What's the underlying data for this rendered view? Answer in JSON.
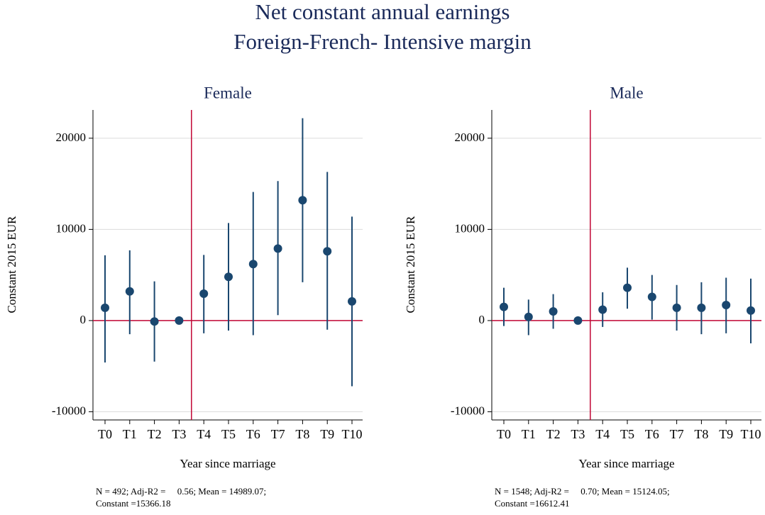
{
  "title": [
    "Net constant annual earnings",
    "Foreign-French- Intensive margin"
  ],
  "chart_data": [
    {
      "type": "errorbar",
      "title": "Female",
      "y_label": "Constant 2015 EUR",
      "x_label": "Year since marriage",
      "categories": [
        "T0",
        "T1",
        "T2",
        "T3",
        "T4",
        "T5",
        "T6",
        "T7",
        "T8",
        "T9",
        "T10"
      ],
      "values": [
        1400,
        3200,
        -100,
        0,
        2950,
        4800,
        6200,
        7900,
        13200,
        7600,
        2100
      ],
      "lower": [
        -4600,
        -1500,
        -4500,
        0,
        -1400,
        -1100,
        -1600,
        600,
        4200,
        -1000,
        -7200
      ],
      "upper": [
        7160,
        7700,
        4300,
        0,
        7200,
        10700,
        14100,
        15300,
        22200,
        16300,
        11400
      ],
      "color": "#1a476f",
      "ref_color": "#c10534",
      "hline": 0,
      "vline": 3.5,
      "ylim": [
        -10900,
        23100
      ],
      "yticks": [
        -10000,
        0,
        10000,
        20000
      ],
      "grid": true,
      "note": [
        "N = 492; Adj-R2 =     0.56; Mean = 14989.07;",
        "Constant =15366.18"
      ]
    },
    {
      "type": "errorbar",
      "title": "Male",
      "y_label": "Constant 2015 EUR",
      "x_label": "Year since marriage",
      "categories": [
        "T0",
        "T1",
        "T2",
        "T3",
        "T4",
        "T5",
        "T6",
        "T7",
        "T8",
        "T9",
        "T10"
      ],
      "values": [
        1500,
        400,
        1000,
        0,
        1200,
        3600,
        2600,
        1400,
        1400,
        1700,
        1100
      ],
      "lower": [
        -600,
        -1600,
        -900,
        0,
        -700,
        1300,
        100,
        -1100,
        -1500,
        -1400,
        -2500
      ],
      "upper": [
        3600,
        2300,
        2900,
        0,
        3100,
        5800,
        5000,
        3900,
        4200,
        4700,
        4600
      ],
      "color": "#1a476f",
      "ref_color": "#c10534",
      "hline": 0,
      "vline": 3.5,
      "ylim": [
        -10900,
        23100
      ],
      "yticks": [
        -10000,
        0,
        10000,
        20000
      ],
      "grid": true,
      "note": [
        "N = 1548; Adj-R2 =     0.70; Mean = 15124.05;",
        "Constant =16612.41"
      ]
    }
  ]
}
